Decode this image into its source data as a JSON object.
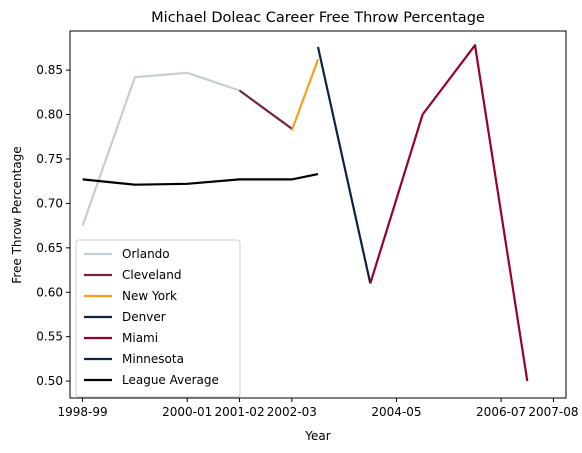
{
  "chart_data": {
    "type": "line",
    "title": "Michael Doleac Career Free Throw Percentage",
    "xlabel": "Year",
    "ylabel": "Free Throw Percentage",
    "x_tick_labels": [
      "1998-99",
      "2000-01",
      "2001-02",
      "2002-03",
      "2004-05",
      "2006-07",
      "2007-08"
    ],
    "x_tick_positions": [
      1998.5,
      2000.5,
      2001.5,
      2002.5,
      2004.5,
      2006.5,
      2007.5
    ],
    "xlim": [
      1998.26,
      2007.74
    ],
    "ylim": [
      0.481,
      0.894
    ],
    "y_ticks": [
      "0.50",
      "0.55",
      "0.60",
      "0.65",
      "0.70",
      "0.75",
      "0.80",
      "0.85"
    ],
    "legend_position": "lower-left",
    "grid": false,
    "series": [
      {
        "name": "Orlando",
        "color": "#C4CED4",
        "points": [
          [
            1998.5,
            0.675
          ],
          [
            1999.5,
            0.842
          ],
          [
            2000.5,
            0.847
          ],
          [
            2001.5,
            0.827
          ]
        ]
      },
      {
        "name": "Cleveland",
        "color": "#6F263D",
        "points": [
          [
            2001.5,
            0.827
          ],
          [
            2002.5,
            0.784
          ]
        ]
      },
      {
        "name": "New York",
        "color": "#F5A01E",
        "points": [
          [
            2002.5,
            0.782
          ],
          [
            2003.0,
            0.862
          ]
        ]
      },
      {
        "name": "Denver",
        "color": "#0E2240",
        "points": [
          [
            2003.0,
            0.876
          ],
          [
            2004.0,
            0.61
          ]
        ]
      },
      {
        "name": "Miami",
        "color": "#98002E",
        "points": [
          [
            2004.0,
            0.61
          ],
          [
            2005.0,
            0.8
          ],
          [
            2006.0,
            0.878
          ],
          [
            2007.0,
            0.5
          ]
        ]
      },
      {
        "name": "Minnesota",
        "color": "#0C2340",
        "points": []
      },
      {
        "name": "League Average",
        "color": "#000000",
        "points": [
          [
            1998.5,
            0.727
          ],
          [
            1999.5,
            0.721
          ],
          [
            2000.5,
            0.722
          ],
          [
            2001.5,
            0.727
          ],
          [
            2002.5,
            0.727
          ],
          [
            2003.0,
            0.733
          ]
        ]
      }
    ]
  }
}
